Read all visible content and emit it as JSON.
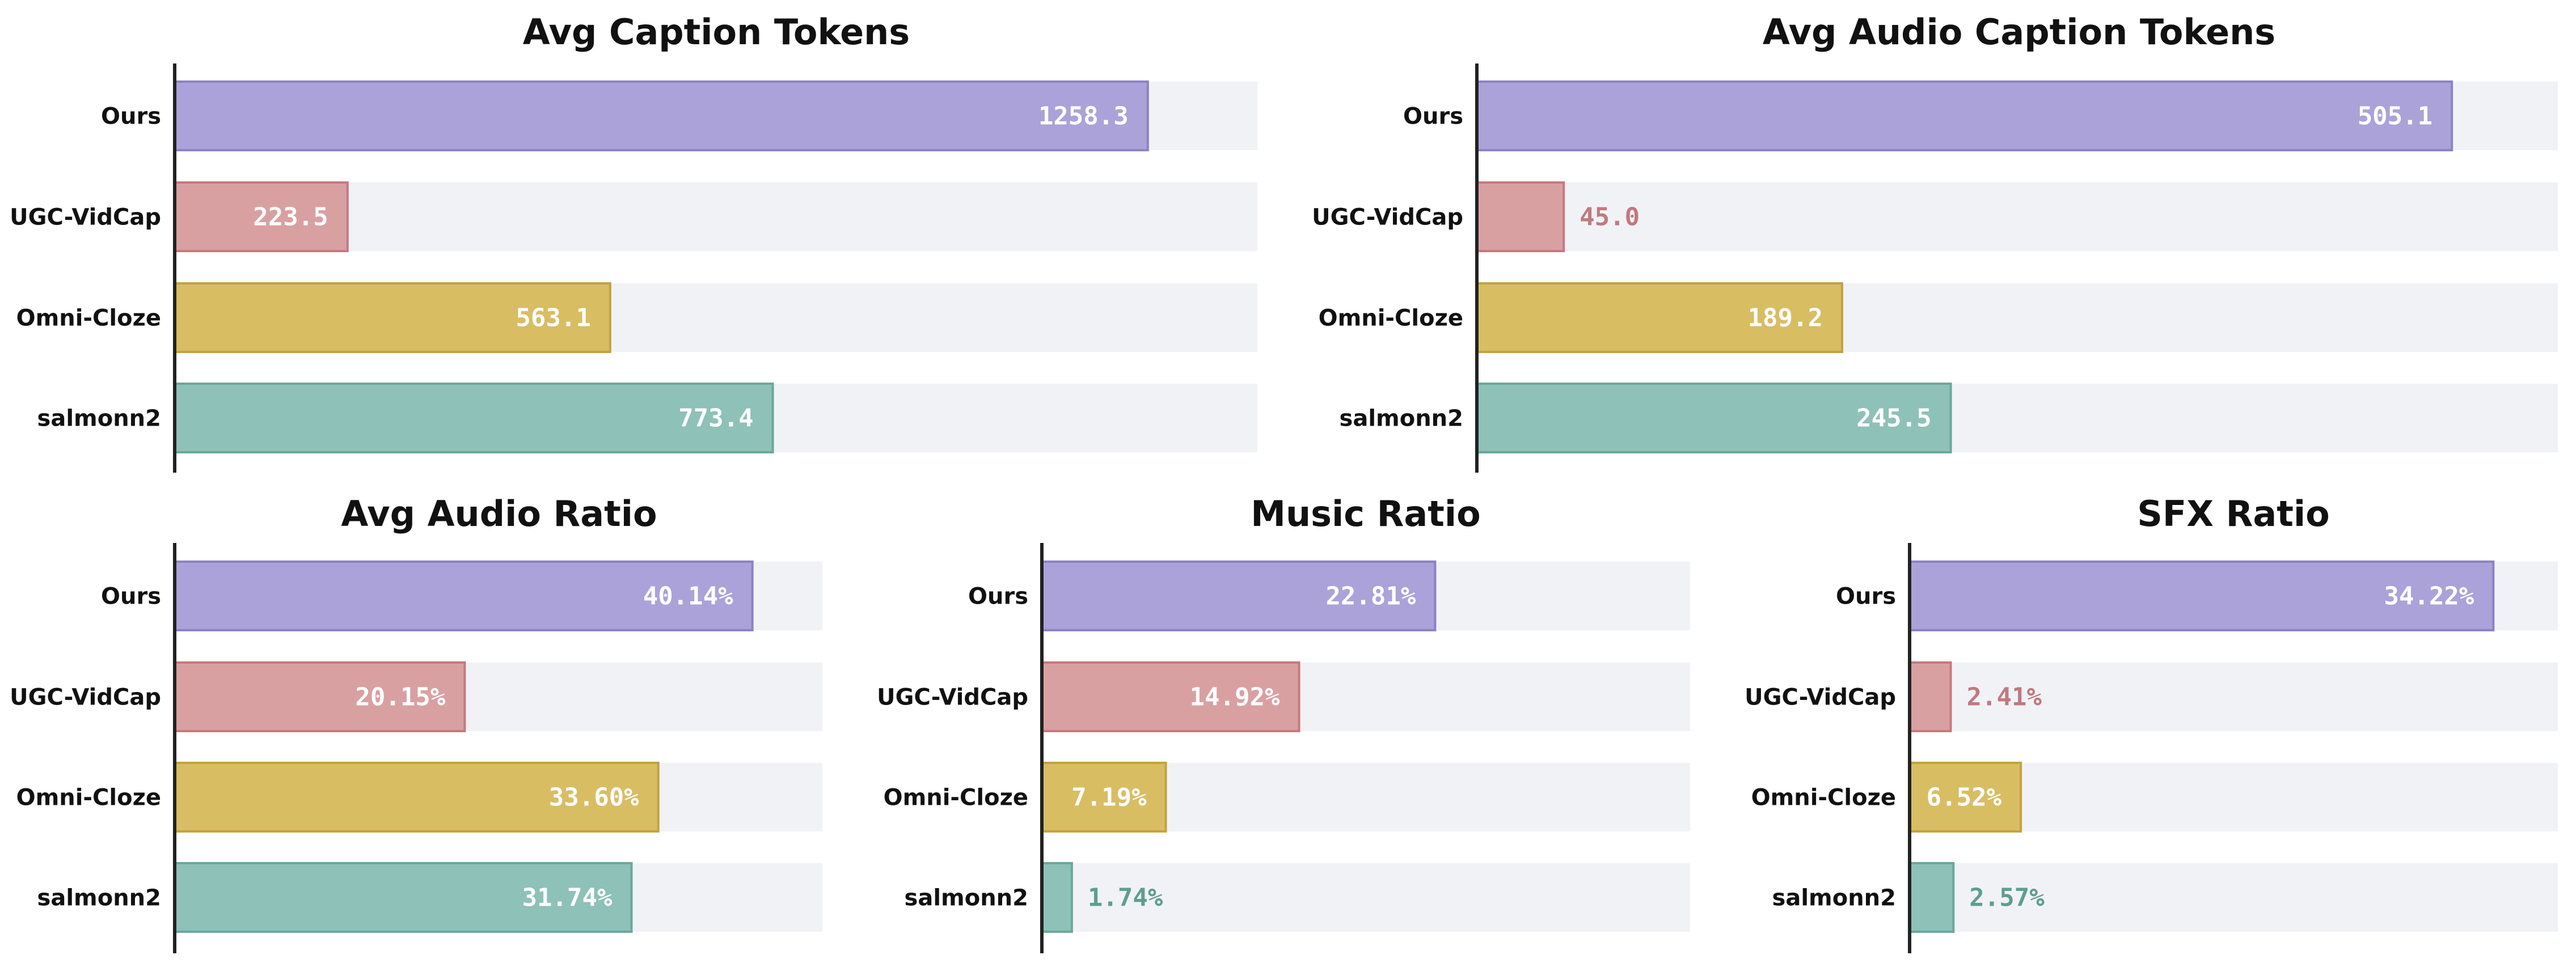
{
  "categories": [
    "Ours",
    "UGC-VidCap",
    "Omni-Cloze",
    "salmonn2"
  ],
  "colors": {
    "fill": [
      "#aba2d9",
      "#d9a0a2",
      "#d8bd63",
      "#8ec1b8"
    ],
    "stroke": [
      "#8d82c4",
      "#c47a7e",
      "#c4a240",
      "#6aa89b"
    ],
    "label_outside": [
      "#8d82c4",
      "#c07a7e",
      "#b89a3a",
      "#5e9e8f"
    ],
    "track": "#f1f2f6",
    "axis": "#222222"
  },
  "chart_data": [
    {
      "type": "bar",
      "orientation": "horizontal",
      "title": "Avg Caption Tokens",
      "categories": [
        "Ours",
        "UGC-VidCap",
        "Omni-Cloze",
        "salmonn2"
      ],
      "values": [
        1258.3,
        223.5,
        563.1,
        773.4
      ],
      "labels": [
        "1258.3",
        "223.5",
        "563.1",
        "773.4"
      ],
      "xlim": [
        0,
        1400
      ],
      "grid": false,
      "legend": "none"
    },
    {
      "type": "bar",
      "orientation": "horizontal",
      "title": "Avg Audio Caption Tokens",
      "categories": [
        "Ours",
        "UGC-VidCap",
        "Omni-Cloze",
        "salmonn2"
      ],
      "values": [
        505.1,
        45.0,
        189.2,
        245.5
      ],
      "labels": [
        "505.1",
        "45.0",
        "189.2",
        "245.5"
      ],
      "xlim": [
        0,
        560
      ],
      "grid": false,
      "legend": "none"
    },
    {
      "type": "bar",
      "orientation": "horizontal",
      "title": "Avg Audio Ratio",
      "categories": [
        "Ours",
        "UGC-VidCap",
        "Omni-Cloze",
        "salmonn2"
      ],
      "values": [
        40.14,
        20.15,
        33.6,
        31.74
      ],
      "labels": [
        "40.14%",
        "20.15%",
        "33.60%",
        "31.74%"
      ],
      "xlim": [
        0,
        45
      ],
      "grid": false,
      "legend": "none"
    },
    {
      "type": "bar",
      "orientation": "horizontal",
      "title": "Music Ratio",
      "categories": [
        "Ours",
        "UGC-VidCap",
        "Omni-Cloze",
        "salmonn2"
      ],
      "values": [
        22.81,
        14.92,
        7.19,
        1.74
      ],
      "labels": [
        "22.81%",
        "14.92%",
        "7.19%",
        "1.74%"
      ],
      "xlim": [
        0,
        37.6
      ],
      "grid": false,
      "legend": "none"
    },
    {
      "type": "bar",
      "orientation": "horizontal",
      "title": "SFX Ratio",
      "categories": [
        "Ours",
        "UGC-VidCap",
        "Omni-Cloze",
        "salmonn2"
      ],
      "values": [
        34.22,
        2.41,
        6.52,
        2.57
      ],
      "labels": [
        "34.22%",
        "2.41%",
        "6.52%",
        "2.57%"
      ],
      "xlim": [
        0,
        38
      ],
      "grid": false,
      "legend": "none"
    }
  ]
}
